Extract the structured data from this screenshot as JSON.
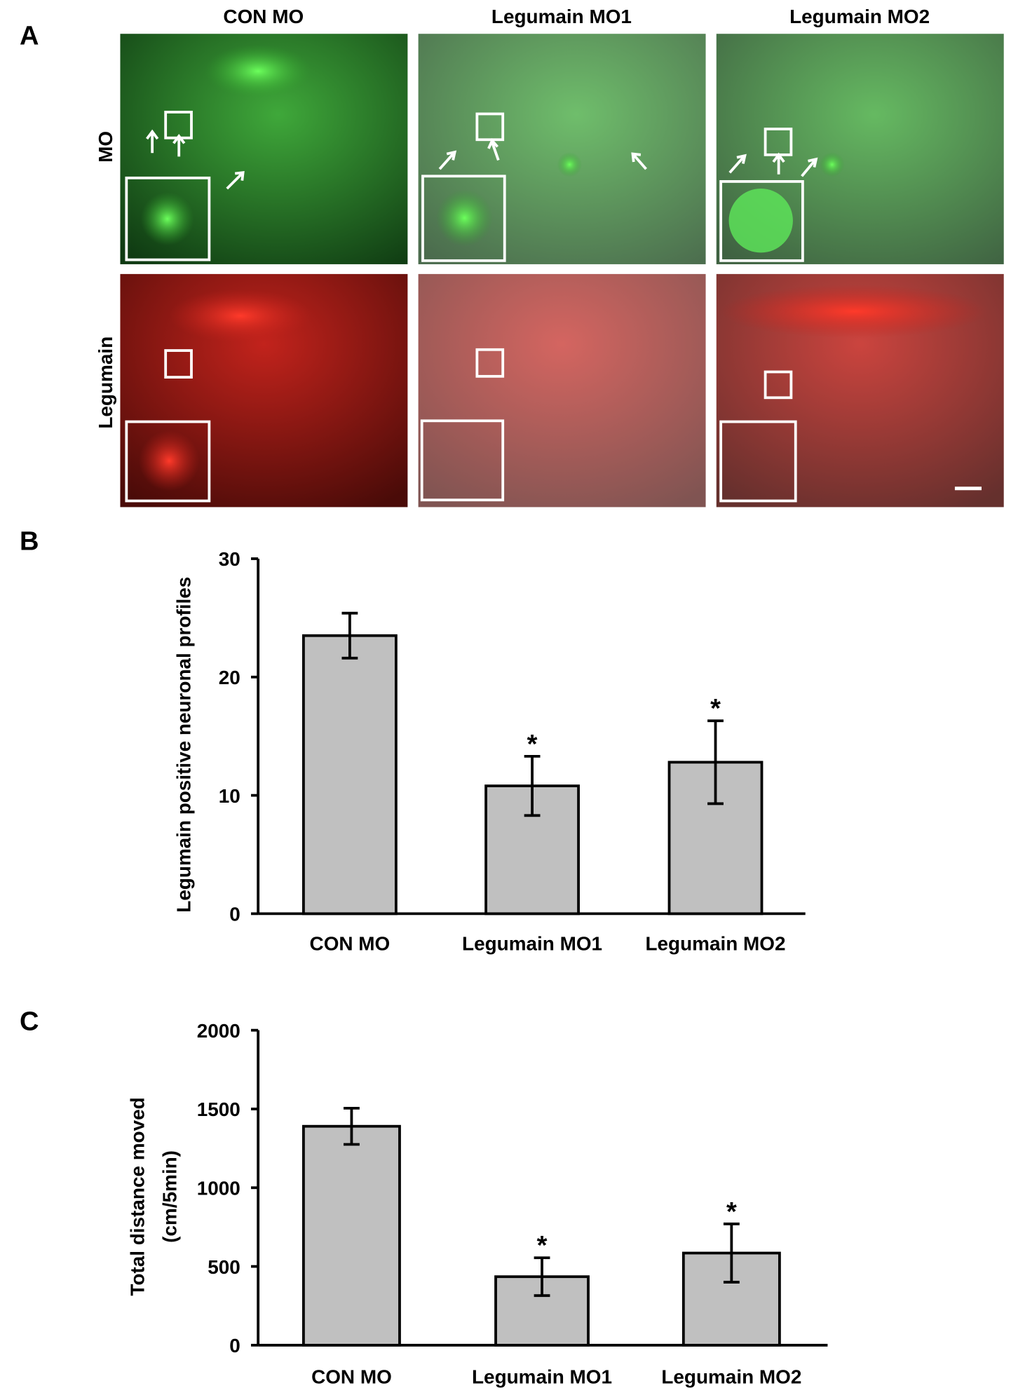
{
  "panel_a": {
    "label": "A",
    "columns": [
      "CON MO",
      "Legumain MO1",
      "Legumain MO2"
    ],
    "rows": [
      "MO",
      "Legumain"
    ]
  },
  "chart_data": [
    {
      "type": "bar",
      "label": "B",
      "y_label": [
        "Legumain  positive neuronal profiles"
      ],
      "categories": [
        "CON MO",
        "Legumain MO1",
        "Legumain MO2"
      ],
      "values": [
        23.5,
        10.8,
        12.8
      ],
      "errors": [
        1.9,
        2.5,
        3.5
      ],
      "significance": [
        null,
        "*",
        "*"
      ],
      "color": "#c0c0c0",
      "ylim": [
        0,
        30
      ],
      "yticks": [
        0,
        10,
        20,
        30
      ],
      "grid": false
    },
    {
      "type": "bar",
      "label": "C",
      "y_label": [
        "Total distance moved",
        "(cm/5min)"
      ],
      "categories": [
        "CON MO",
        "Legumain MO1",
        "Legumain MO2"
      ],
      "values": [
        1390,
        435,
        585
      ],
      "errors": [
        115,
        120,
        185
      ],
      "significance": [
        null,
        "*",
        "*"
      ],
      "color": "#c0c0c0",
      "ylim": [
        0,
        2000
      ],
      "yticks": [
        0,
        500,
        1000,
        1500,
        2000
      ],
      "grid": false
    }
  ]
}
